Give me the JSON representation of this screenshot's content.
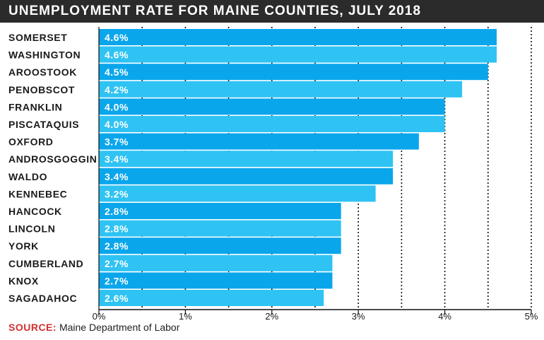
{
  "header": {
    "title": "UNEMPLOYMENT RATE FOR MAINE COUNTIES, JULY 2018"
  },
  "footer": {
    "source_key": "SOURCE:",
    "source_text": " Maine Department of Labor"
  },
  "chart_data": {
    "type": "bar",
    "orientation": "horizontal",
    "title": "UNEMPLOYMENT RATE FOR MAINE COUNTIES, JULY 2018",
    "categories": [
      "SOMERSET",
      "WASHINGTON",
      "AROOSTOOK",
      "PENOBSCOT",
      "FRANKLIN",
      "PISCATAQUIS",
      "OXFORD",
      "ANDROSGOGGIN",
      "WALDO",
      "KENNEBEC",
      "HANCOCK",
      "LINCOLN",
      "YORK",
      "CUMBERLAND",
      "KNOX",
      "SAGADAHOC"
    ],
    "values": [
      4.6,
      4.6,
      4.5,
      4.2,
      4.0,
      4.0,
      3.7,
      3.4,
      3.4,
      3.2,
      2.8,
      2.8,
      2.8,
      2.7,
      2.7,
      2.6
    ],
    "value_labels": [
      "4.6%",
      "4.6%",
      "4.5%",
      "4.2%",
      "4.0%",
      "4.0%",
      "3.7%",
      "3.4%",
      "3.4%",
      "3.2%",
      "2.8%",
      "2.8%",
      "2.8%",
      "2.7%",
      "2.7%",
      "2.6%"
    ],
    "xlim": [
      0,
      5
    ],
    "x_ticks": [
      0,
      1,
      2,
      3,
      4,
      5
    ],
    "x_tick_labels": [
      "0%",
      "1%",
      "2%",
      "3%",
      "4%",
      "5%"
    ],
    "grid": "vertical dotted, every 0.5%",
    "colors": {
      "bar_dark": "#0aa6ec",
      "bar_light": "#2fc3f3",
      "title_bg": "#2b2b2b",
      "source_key": "#d32f2f"
    }
  }
}
